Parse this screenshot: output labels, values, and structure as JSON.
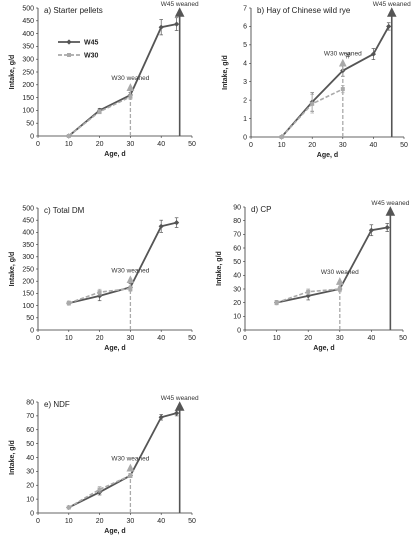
{
  "chart_data": [
    {
      "type": "line",
      "title": "a) Starter pellets",
      "xlabel": "Age, d",
      "ylabel": "Intake, g/d",
      "xlim": [
        0,
        50
      ],
      "ylim": [
        0,
        500
      ],
      "xticks": [
        0,
        10,
        20,
        30,
        40,
        50
      ],
      "yticks": [
        0,
        50,
        100,
        150,
        200,
        250,
        300,
        350,
        400,
        450,
        500
      ],
      "legend": {
        "position": "top-left",
        "entries": [
          "W45",
          "W30"
        ]
      },
      "series": [
        {
          "name": "W45",
          "x": [
            10,
            20,
            30,
            40,
            45
          ],
          "y": [
            0,
            100,
            160,
            425,
            437
          ],
          "err": [
            0,
            8,
            10,
            30,
            25
          ]
        },
        {
          "name": "W30",
          "x": [
            10,
            20,
            30
          ],
          "y": [
            0,
            95,
            153
          ],
          "err": [
            0,
            8,
            10
          ]
        }
      ],
      "annotations": [
        {
          "text": "W30 weaned",
          "x": 30
        },
        {
          "text": "W45 weaned",
          "x": 46
        }
      ]
    },
    {
      "type": "line",
      "title": "b) Hay of Chinese wild rye",
      "xlabel": "Age, d",
      "ylabel": "Intake, g/d",
      "xlim": [
        0,
        50
      ],
      "ylim": [
        0,
        7
      ],
      "xticks": [
        0,
        10,
        20,
        30,
        40,
        50
      ],
      "yticks": [
        0,
        1,
        2,
        3,
        4,
        5,
        6,
        7
      ],
      "series": [
        {
          "name": "W45",
          "x": [
            10,
            20,
            30,
            40,
            45
          ],
          "y": [
            0,
            1.9,
            3.6,
            4.5,
            6.0
          ],
          "err": [
            0,
            0.5,
            0.3,
            0.3,
            0.2
          ]
        },
        {
          "name": "W30",
          "x": [
            10,
            20,
            30
          ],
          "y": [
            0,
            1.8,
            2.6
          ],
          "err": [
            0,
            0.5,
            0.2
          ]
        }
      ],
      "annotations": [
        {
          "text": "W30 weaned",
          "x": 30
        },
        {
          "text": "W45 weaned",
          "x": 46
        },
        {
          "text": "#",
          "x": 30
        }
      ]
    },
    {
      "type": "line",
      "title": "c) Total DM",
      "xlabel": "Age, d",
      "ylabel": "Intake, g/d",
      "xlim": [
        0,
        50
      ],
      "ylim": [
        0,
        500
      ],
      "xticks": [
        0,
        10,
        20,
        30,
        40,
        50
      ],
      "yticks": [
        0,
        50,
        100,
        150,
        200,
        250,
        300,
        350,
        400,
        450,
        500
      ],
      "series": [
        {
          "name": "W45",
          "x": [
            10,
            20,
            30,
            40,
            45
          ],
          "y": [
            110,
            140,
            175,
            425,
            440
          ],
          "err": [
            8,
            20,
            15,
            25,
            20
          ]
        },
        {
          "name": "W30",
          "x": [
            10,
            20,
            30
          ],
          "y": [
            110,
            155,
            170
          ],
          "err": [
            8,
            12,
            10
          ]
        }
      ],
      "annotations": [
        {
          "text": "W30 weaned",
          "x": 30
        }
      ]
    },
    {
      "type": "line",
      "title": "d) CP",
      "xlabel": "Age, d",
      "ylabel": "Intake, g/d",
      "xlim": [
        0,
        50
      ],
      "ylim": [
        0,
        90
      ],
      "xticks": [
        0,
        10,
        20,
        30,
        40,
        50
      ],
      "yticks": [
        0,
        10,
        20,
        30,
        40,
        50,
        60,
        70,
        80,
        90
      ],
      "series": [
        {
          "name": "W45",
          "x": [
            10,
            20,
            30,
            40,
            45
          ],
          "y": [
            20,
            25,
            30,
            73,
            75
          ],
          "err": [
            1.5,
            3,
            2,
            4,
            3
          ]
        },
        {
          "name": "W30",
          "x": [
            10,
            20,
            30
          ],
          "y": [
            20,
            28,
            30
          ],
          "err": [
            1.5,
            2,
            2
          ]
        }
      ],
      "annotations": [
        {
          "text": "W30 weaned",
          "x": 30
        },
        {
          "text": "W45 weaned",
          "x": 46
        }
      ]
    },
    {
      "type": "line",
      "title": "e) NDF",
      "xlabel": "Age, d",
      "ylabel": "Intake, g/d",
      "xlim": [
        0,
        50
      ],
      "ylim": [
        0,
        80
      ],
      "xticks": [
        0,
        10,
        20,
        30,
        40,
        50
      ],
      "yticks": [
        0,
        10,
        20,
        30,
        40,
        50,
        60,
        70,
        80
      ],
      "series": [
        {
          "name": "W45",
          "x": [
            10,
            20,
            30,
            40,
            45
          ],
          "y": [
            4,
            15,
            27,
            69,
            72
          ],
          "err": [
            0.5,
            2,
            1.5,
            2,
            2
          ]
        },
        {
          "name": "W30",
          "x": [
            10,
            20,
            30
          ],
          "y": [
            4,
            17,
            27
          ],
          "err": [
            0.5,
            2,
            1.5
          ]
        }
      ],
      "annotations": [
        {
          "text": "W30 weaned",
          "x": 30
        },
        {
          "text": "W45 weaned",
          "x": 46
        }
      ]
    }
  ]
}
